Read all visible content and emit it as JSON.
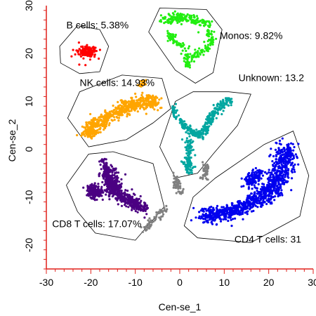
{
  "chart_data": {
    "type": "scatter",
    "title": "",
    "xlabel": "Cen-se_1",
    "ylabel": "Cen-se_2",
    "xlim": [
      -30,
      30
    ],
    "ylim": [
      -25,
      30
    ],
    "x_ticks": [
      -30,
      -20,
      -10,
      0,
      10,
      20,
      30
    ],
    "y_ticks": [
      -20,
      -10,
      0,
      10,
      20,
      30
    ],
    "axis_color": "#e0201b",
    "grid": false,
    "legend": "none",
    "clusters": [
      {
        "id": "b-cells",
        "label": "B cells: 5.38%",
        "percent": 5.38,
        "color": "#ff0000",
        "center": [
          -21,
          20.5
        ],
        "label_at": [
          -25.5,
          25.2
        ],
        "hull": [
          [
            -27,
            21.5
          ],
          [
            -23,
            25.8
          ],
          [
            -18,
            25
          ],
          [
            -16,
            21.5
          ],
          [
            -18,
            16.2
          ],
          [
            -22.5,
            15.8
          ],
          [
            -26.8,
            18
          ]
        ],
        "blobs": [
          {
            "path": [
              [
                -20.8,
                20.2
              ],
              [
                -20.8,
                20.6
              ]
            ],
            "sx": 2.1,
            "sy": 1.2,
            "n": 150
          }
        ]
      },
      {
        "id": "monos",
        "label": "Monos: 9.82%",
        "percent": 9.82,
        "color": "#22ee11",
        "center": [
          0.5,
          22.5
        ],
        "label_at": [
          9,
          23
        ],
        "hull": [
          [
            -7,
            24.5
          ],
          [
            -4.5,
            29.5
          ],
          [
            6,
            29.2
          ],
          [
            9.5,
            25
          ],
          [
            7.5,
            16
          ],
          [
            3.5,
            13.8
          ],
          [
            -1,
            16.5
          ]
        ],
        "blobs": [
          {
            "path": [
              [
                -3.8,
                27
              ],
              [
                1,
                27.5
              ],
              [
                6,
                26
              ]
            ],
            "sx": 1.4,
            "sy": 0.9,
            "n": 160
          },
          {
            "path": [
              [
                6,
                26
              ],
              [
                7.5,
                22.5
              ],
              [
                5,
                20.5
              ],
              [
                3,
                19
              ]
            ],
            "sx": 0.9,
            "sy": 0.7,
            "n": 90
          },
          {
            "path": [
              [
                2,
                21
              ],
              [
                -1.5,
                22.5
              ],
              [
                -2.5,
                24.5
              ]
            ],
            "sx": 0.8,
            "sy": 0.7,
            "n": 60
          },
          {
            "path": [
              [
                1.5,
                20
              ],
              [
                1.8,
                17
              ]
            ],
            "sx": 0.6,
            "sy": 0.8,
            "n": 45
          }
        ]
      },
      {
        "id": "nk-cells",
        "label": "NK cells: 14.93%",
        "percent": 14.93,
        "color": "#ffa500",
        "center": [
          -14,
          7
        ],
        "label_at": [
          -22.5,
          13.2
        ],
        "hull": [
          [
            -25.2,
            6.5
          ],
          [
            -22.5,
            12
          ],
          [
            -13,
            15.5
          ],
          [
            -4,
            14.8
          ],
          [
            -2,
            8.5
          ],
          [
            -6,
            5.5
          ],
          [
            -12,
            2
          ],
          [
            -20.5,
            0.5
          ]
        ],
        "blobs": [
          {
            "path": [
              [
                -21,
                4.5
              ],
              [
                -17,
                6
              ],
              [
                -13,
                8.5
              ],
              [
                -9,
                10
              ],
              [
                -5,
                9.5
              ]
            ],
            "sx": 1.4,
            "sy": 1.4,
            "n": 520
          },
          {
            "path": [
              [
                -21.5,
                3.5
              ],
              [
                -19,
                3.5
              ]
            ],
            "sx": 1.2,
            "sy": 0.9,
            "n": 80
          },
          {
            "path": [
              [
                -9,
                13
              ],
              [
                -8,
                14.3
              ]
            ],
            "sx": 0.6,
            "sy": 0.4,
            "n": 30
          }
        ]
      },
      {
        "id": "unknown",
        "label": "Unknown: 13.2",
        "percent": 13.2,
        "color": "#00a6a0",
        "center": [
          3.5,
          4
        ],
        "label_at": [
          13.2,
          14.2
        ],
        "hull": [
          [
            -1,
            -6
          ],
          [
            -4.5,
            0.5
          ],
          [
            -1,
            10
          ],
          [
            3,
            12
          ],
          [
            11,
            12
          ],
          [
            16,
            11.5
          ],
          [
            13,
            5
          ],
          [
            7.5,
            -1
          ],
          [
            4,
            -5
          ]
        ],
        "blobs": [
          {
            "path": [
              [
                0,
                6
              ],
              [
                3,
                3.5
              ],
              [
                5.5,
                3
              ]
            ],
            "sx": 0.8,
            "sy": 0.8,
            "n": 120
          },
          {
            "path": [
              [
                5.5,
                3
              ],
              [
                7,
                6.5
              ],
              [
                9,
                9
              ],
              [
                11.5,
                10.5
              ]
            ],
            "sx": 0.9,
            "sy": 0.8,
            "n": 160
          },
          {
            "path": [
              [
                2,
                2
              ],
              [
                2,
                -2.5
              ],
              [
                2.3,
                -4.5
              ]
            ],
            "sx": 1.0,
            "sy": 0.9,
            "n": 120
          },
          {
            "path": [
              [
                -1,
                6.5
              ],
              [
                -1.5,
                9
              ]
            ],
            "sx": 0.6,
            "sy": 0.6,
            "n": 30
          }
        ]
      },
      {
        "id": "cd8-t-cells",
        "label": "CD8 T cells: 17.07%",
        "percent": 17.07,
        "color": "#4b0082",
        "center": [
          -14.5,
          -8
        ],
        "label_at": [
          -28.7,
          -16.3
        ],
        "hull": [
          [
            -25.5,
            -7.5
          ],
          [
            -20.5,
            -1
          ],
          [
            -15,
            -0.5
          ],
          [
            -6,
            -3
          ],
          [
            -3.5,
            -12
          ],
          [
            -10,
            -19
          ],
          [
            -19,
            -17.5
          ],
          [
            -23,
            -13
          ]
        ],
        "blobs": [
          {
            "path": [
              [
                -17,
                -3.5
              ],
              [
                -15.5,
                -6.5
              ],
              [
                -14.5,
                -9
              ]
            ],
            "sx": 1.5,
            "sy": 1.6,
            "n": 380
          },
          {
            "path": [
              [
                -20,
                -8
              ],
              [
                -18.5,
                -9.5
              ]
            ],
            "sx": 1.4,
            "sy": 1.0,
            "n": 160
          },
          {
            "path": [
              [
                -13.5,
                -9.5
              ],
              [
                -11,
                -11
              ],
              [
                -8,
                -12.5
              ]
            ],
            "sx": 1.5,
            "sy": 1.2,
            "n": 260
          }
        ]
      },
      {
        "id": "cd4-t-cells",
        "label": "CD4 T cells: 31",
        "percent": 31,
        "color": "#0000ee",
        "center": [
          19,
          -8
        ],
        "label_at": [
          12.3,
          -19.5
        ],
        "hull": [
          [
            1,
            -16
          ],
          [
            3,
            -10
          ],
          [
            8,
            -6
          ],
          [
            19,
            1
          ],
          [
            25.5,
            3.8
          ],
          [
            29,
            -5.5
          ],
          [
            27,
            -14
          ],
          [
            16,
            -19.5
          ],
          [
            4,
            -18.5
          ]
        ],
        "blobs": [
          {
            "path": [
              [
                24,
                0.5
              ],
              [
                23,
                -4
              ],
              [
                21,
                -8
              ],
              [
                17.5,
                -10.5
              ]
            ],
            "sx": 2.3,
            "sy": 1.8,
            "n": 560
          },
          {
            "path": [
              [
                17.5,
                -10.5
              ],
              [
                13,
                -12.5
              ],
              [
                8.5,
                -13.5
              ],
              [
                5,
                -14
              ]
            ],
            "sx": 2.0,
            "sy": 1.5,
            "n": 430
          },
          {
            "path": [
              [
                18,
                -5
              ],
              [
                15.5,
                -7
              ]
            ],
            "sx": 1.5,
            "sy": 1.2,
            "n": 120
          }
        ]
      },
      {
        "id": "unlabeled",
        "label": "",
        "percent": null,
        "color": "#808080",
        "center": [
          1.5,
          -7
        ],
        "label_at": null,
        "hull": [],
        "blobs": [
          {
            "path": [
              [
                -1,
                -5.5
              ],
              [
                -0.5,
                -7.5
              ],
              [
                0.5,
                -9.5
              ]
            ],
            "sx": 0.7,
            "sy": 0.8,
            "n": 60
          },
          {
            "path": [
              [
                6,
                -3.5
              ],
              [
                5.5,
                -6
              ]
            ],
            "sx": 0.6,
            "sy": 0.8,
            "n": 50
          },
          {
            "path": [
              [
                -3,
                -12.5
              ],
              [
                -6,
                -15
              ],
              [
                -8,
                -17
              ]
            ],
            "sx": 0.8,
            "sy": 0.7,
            "n": 60
          }
        ]
      }
    ]
  }
}
